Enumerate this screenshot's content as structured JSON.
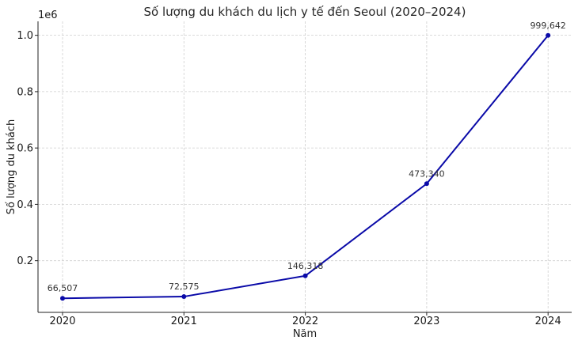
{
  "chart_data": {
    "type": "line",
    "title": "Số lượng du khách du lịch y tế đến Seoul (2020–2024)",
    "xlabel": "Năm",
    "ylabel": "Số lượng du khách",
    "y_scale_label": "1e6",
    "categories": [
      "2020",
      "2021",
      "2022",
      "2023",
      "2024"
    ],
    "series": [
      {
        "values": [
          66507,
          72575,
          146318,
          473340,
          999642
        ],
        "labels": [
          "66,507",
          "72,575",
          "146,318",
          "473,340",
          "999,642"
        ],
        "color": "#0a0aa8"
      }
    ],
    "y_ticks": [
      0.2,
      0.4,
      0.6,
      0.8,
      1.0
    ],
    "y_tick_labels": [
      "0.2",
      "0.4",
      "0.6",
      "0.8",
      "1.0"
    ],
    "y_scale": 1000000,
    "ylim": [
      16610,
      1049539
    ],
    "grid": true
  }
}
